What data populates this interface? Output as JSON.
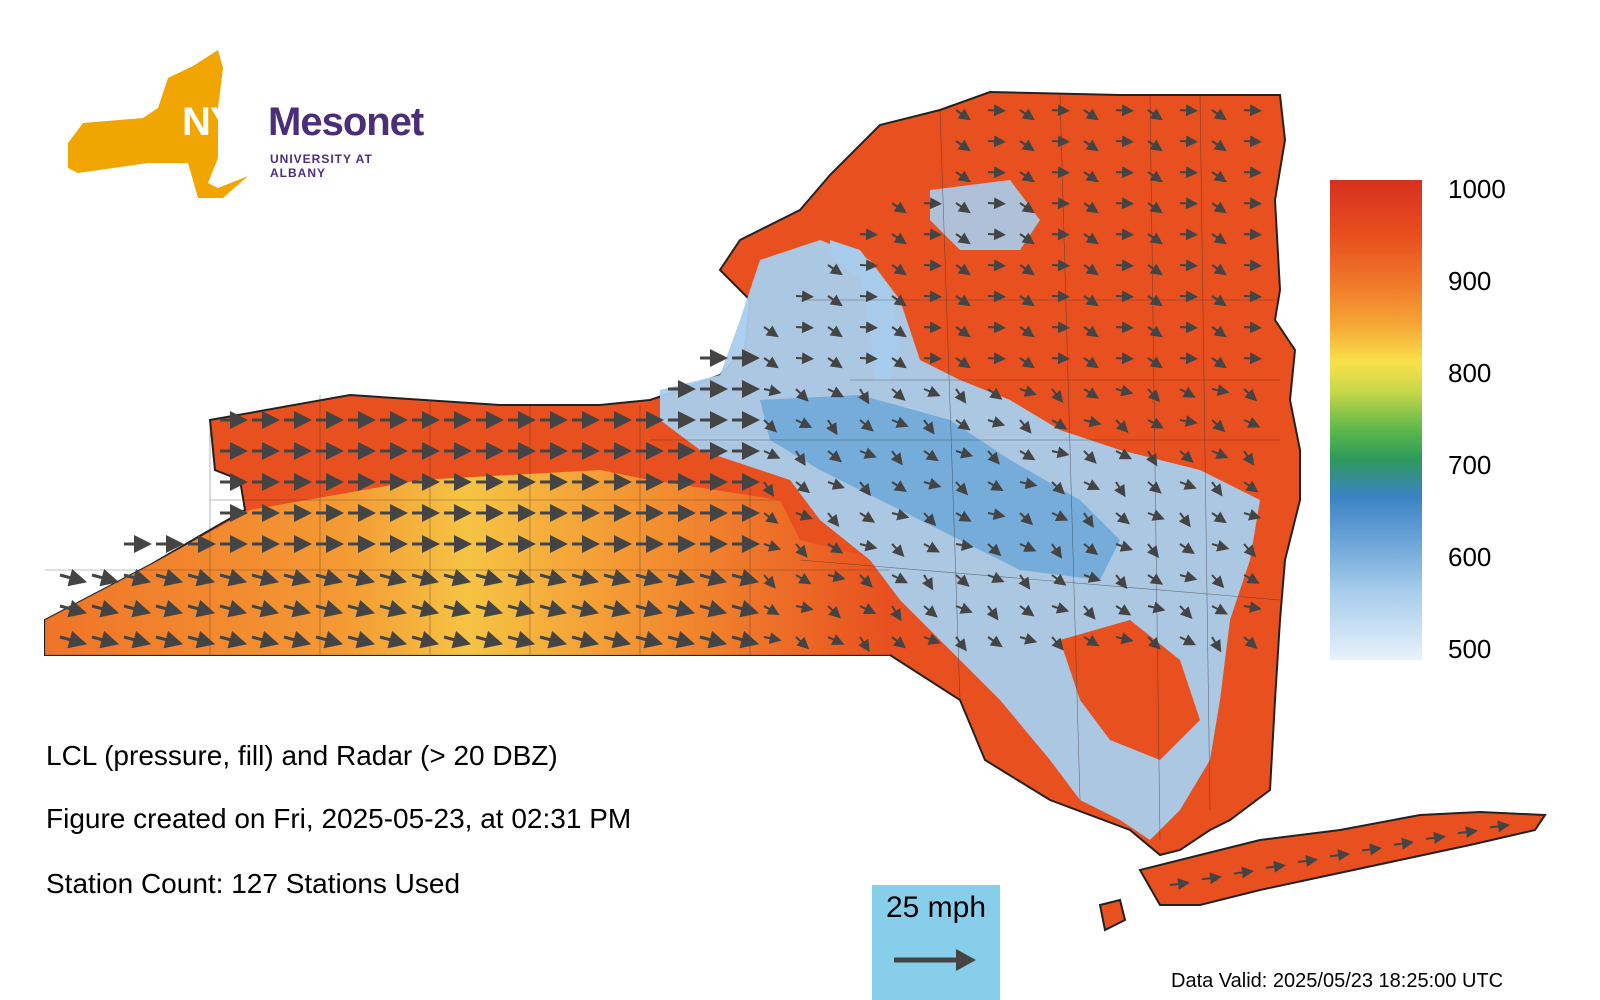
{
  "logo": {
    "nys": "NYS",
    "mesonet": "Mesonet",
    "subtitle": "UNIVERSITY AT ALBANY"
  },
  "info": {
    "line1": "LCL (pressure, fill) and Radar (> 20 DBZ)",
    "line2": "Figure created on Fri, 2025-05-23, at 02:31 PM",
    "line3": "Station Count: 127 Stations Used"
  },
  "wind_legend": {
    "label": "25 mph"
  },
  "colorbar": {
    "ticks": [
      "1000",
      "900",
      "800",
      "700",
      "600",
      "500"
    ]
  },
  "data_valid": "Data Valid: 2025/05/23 18:25:00 UTC",
  "colors": {
    "high_lcl": "#e8501f",
    "mid_lcl": "#f8e04a",
    "radar_low": "#a8cdec",
    "radar_high": "#3b82c4",
    "brand_gold": "#f0a500",
    "brand_purple": "#4b2e7a",
    "legend_bg": "#87ceeb"
  }
}
